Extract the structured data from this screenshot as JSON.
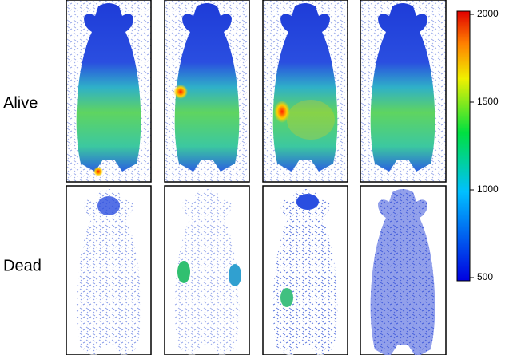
{
  "row_labels": [
    "Alive",
    "Dead"
  ],
  "colorbar": {
    "range": [
      500,
      2000
    ],
    "ticks": [
      2000,
      1500,
      1000,
      500
    ]
  }
}
